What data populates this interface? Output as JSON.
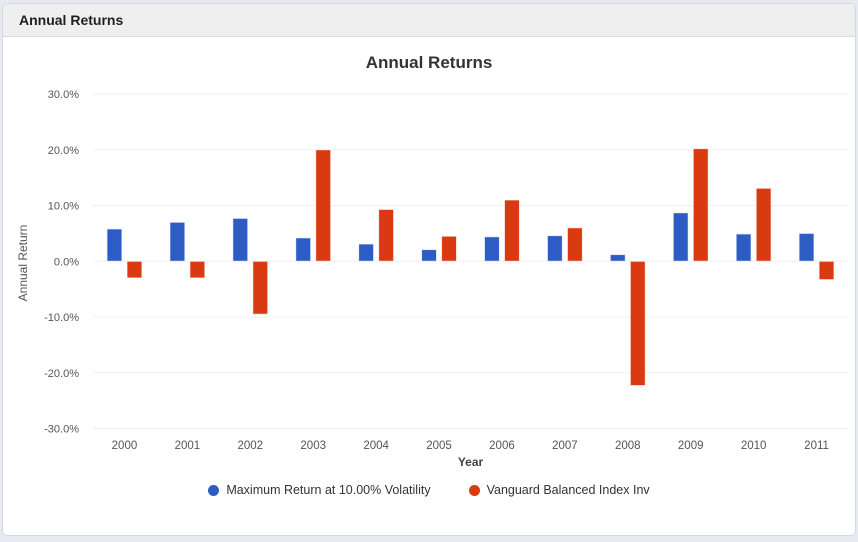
{
  "header": {
    "title": "Annual Returns"
  },
  "chart_data": {
    "type": "bar",
    "title": "Annual Returns",
    "xlabel": "Year",
    "ylabel": "Annual Return",
    "categories": [
      "2000",
      "2001",
      "2002",
      "2003",
      "2004",
      "2005",
      "2006",
      "2007",
      "2008",
      "2009",
      "2010",
      "2011"
    ],
    "series": [
      {
        "name": "Maximum Return at 10.00% Volatility",
        "color": "#2d5dc4",
        "values": [
          5.8,
          7.0,
          7.7,
          4.2,
          3.1,
          2.1,
          4.4,
          4.6,
          1.2,
          8.7,
          4.9,
          5.0
        ]
      },
      {
        "name": "Vanguard Balanced Index Inv",
        "color": "#d93a12",
        "values": [
          -3.0,
          -3.0,
          -9.5,
          20.0,
          9.3,
          4.5,
          11.0,
          6.0,
          -22.3,
          20.2,
          13.1,
          -3.3
        ]
      }
    ],
    "ylim": [
      -30,
      30
    ],
    "y_ticks": [
      30,
      20,
      10,
      0,
      -10,
      -20,
      -30
    ],
    "y_tick_labels": [
      "30.0%",
      "20.0%",
      "10.0%",
      "0.0%",
      "-10.0%",
      "-20.0%",
      "-30.0%"
    ],
    "grid": true,
    "legend_position": "bottom",
    "gridline_color": "#efefef",
    "tick_label_color": "#555555"
  }
}
